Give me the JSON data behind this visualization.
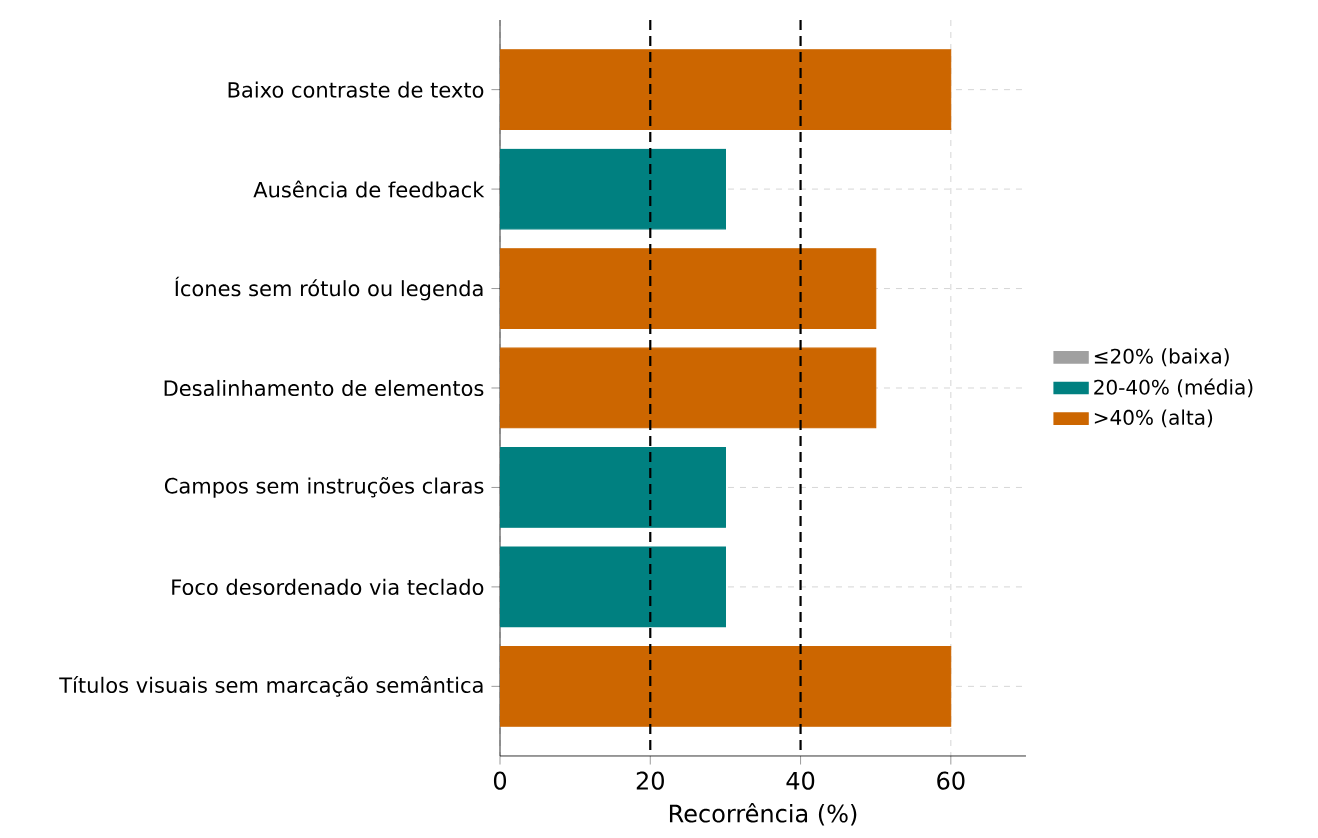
{
  "chart_data": {
    "type": "bar",
    "orientation": "horizontal",
    "xlabel": "Recorrência (%)",
    "categories": [
      "Baixo contraste de texto",
      "Ausência de feedback",
      "Ícones sem rótulo ou legenda",
      "Desalinhamento de elementos",
      "Campos sem instruções claras",
      "Foco desordenado via teclado",
      "Títulos visuais sem marcação semântica"
    ],
    "series": [
      {
        "name": "≤20% (baixa)",
        "color": "#a0a0a0",
        "values": [
          null,
          null,
          null,
          null,
          null,
          null,
          null
        ]
      },
      {
        "name": "20-40% (média)",
        "color": "#008080",
        "values": [
          null,
          30,
          null,
          null,
          30,
          30,
          null
        ]
      },
      {
        "name": ">40% (alta)",
        "color": "#cc6600",
        "values": [
          60,
          null,
          50,
          50,
          null,
          null,
          60
        ]
      }
    ],
    "xlim": [
      0,
      70
    ],
    "xticks": [
      0,
      20,
      40,
      60
    ],
    "grid": true,
    "legend": "right",
    "ref_lines": [
      {
        "axis": "x",
        "value": 20,
        "line_style": "dashed",
        "color": "#000000"
      },
      {
        "axis": "x",
        "value": 40,
        "line_style": "dashed",
        "color": "#000000"
      }
    ]
  }
}
